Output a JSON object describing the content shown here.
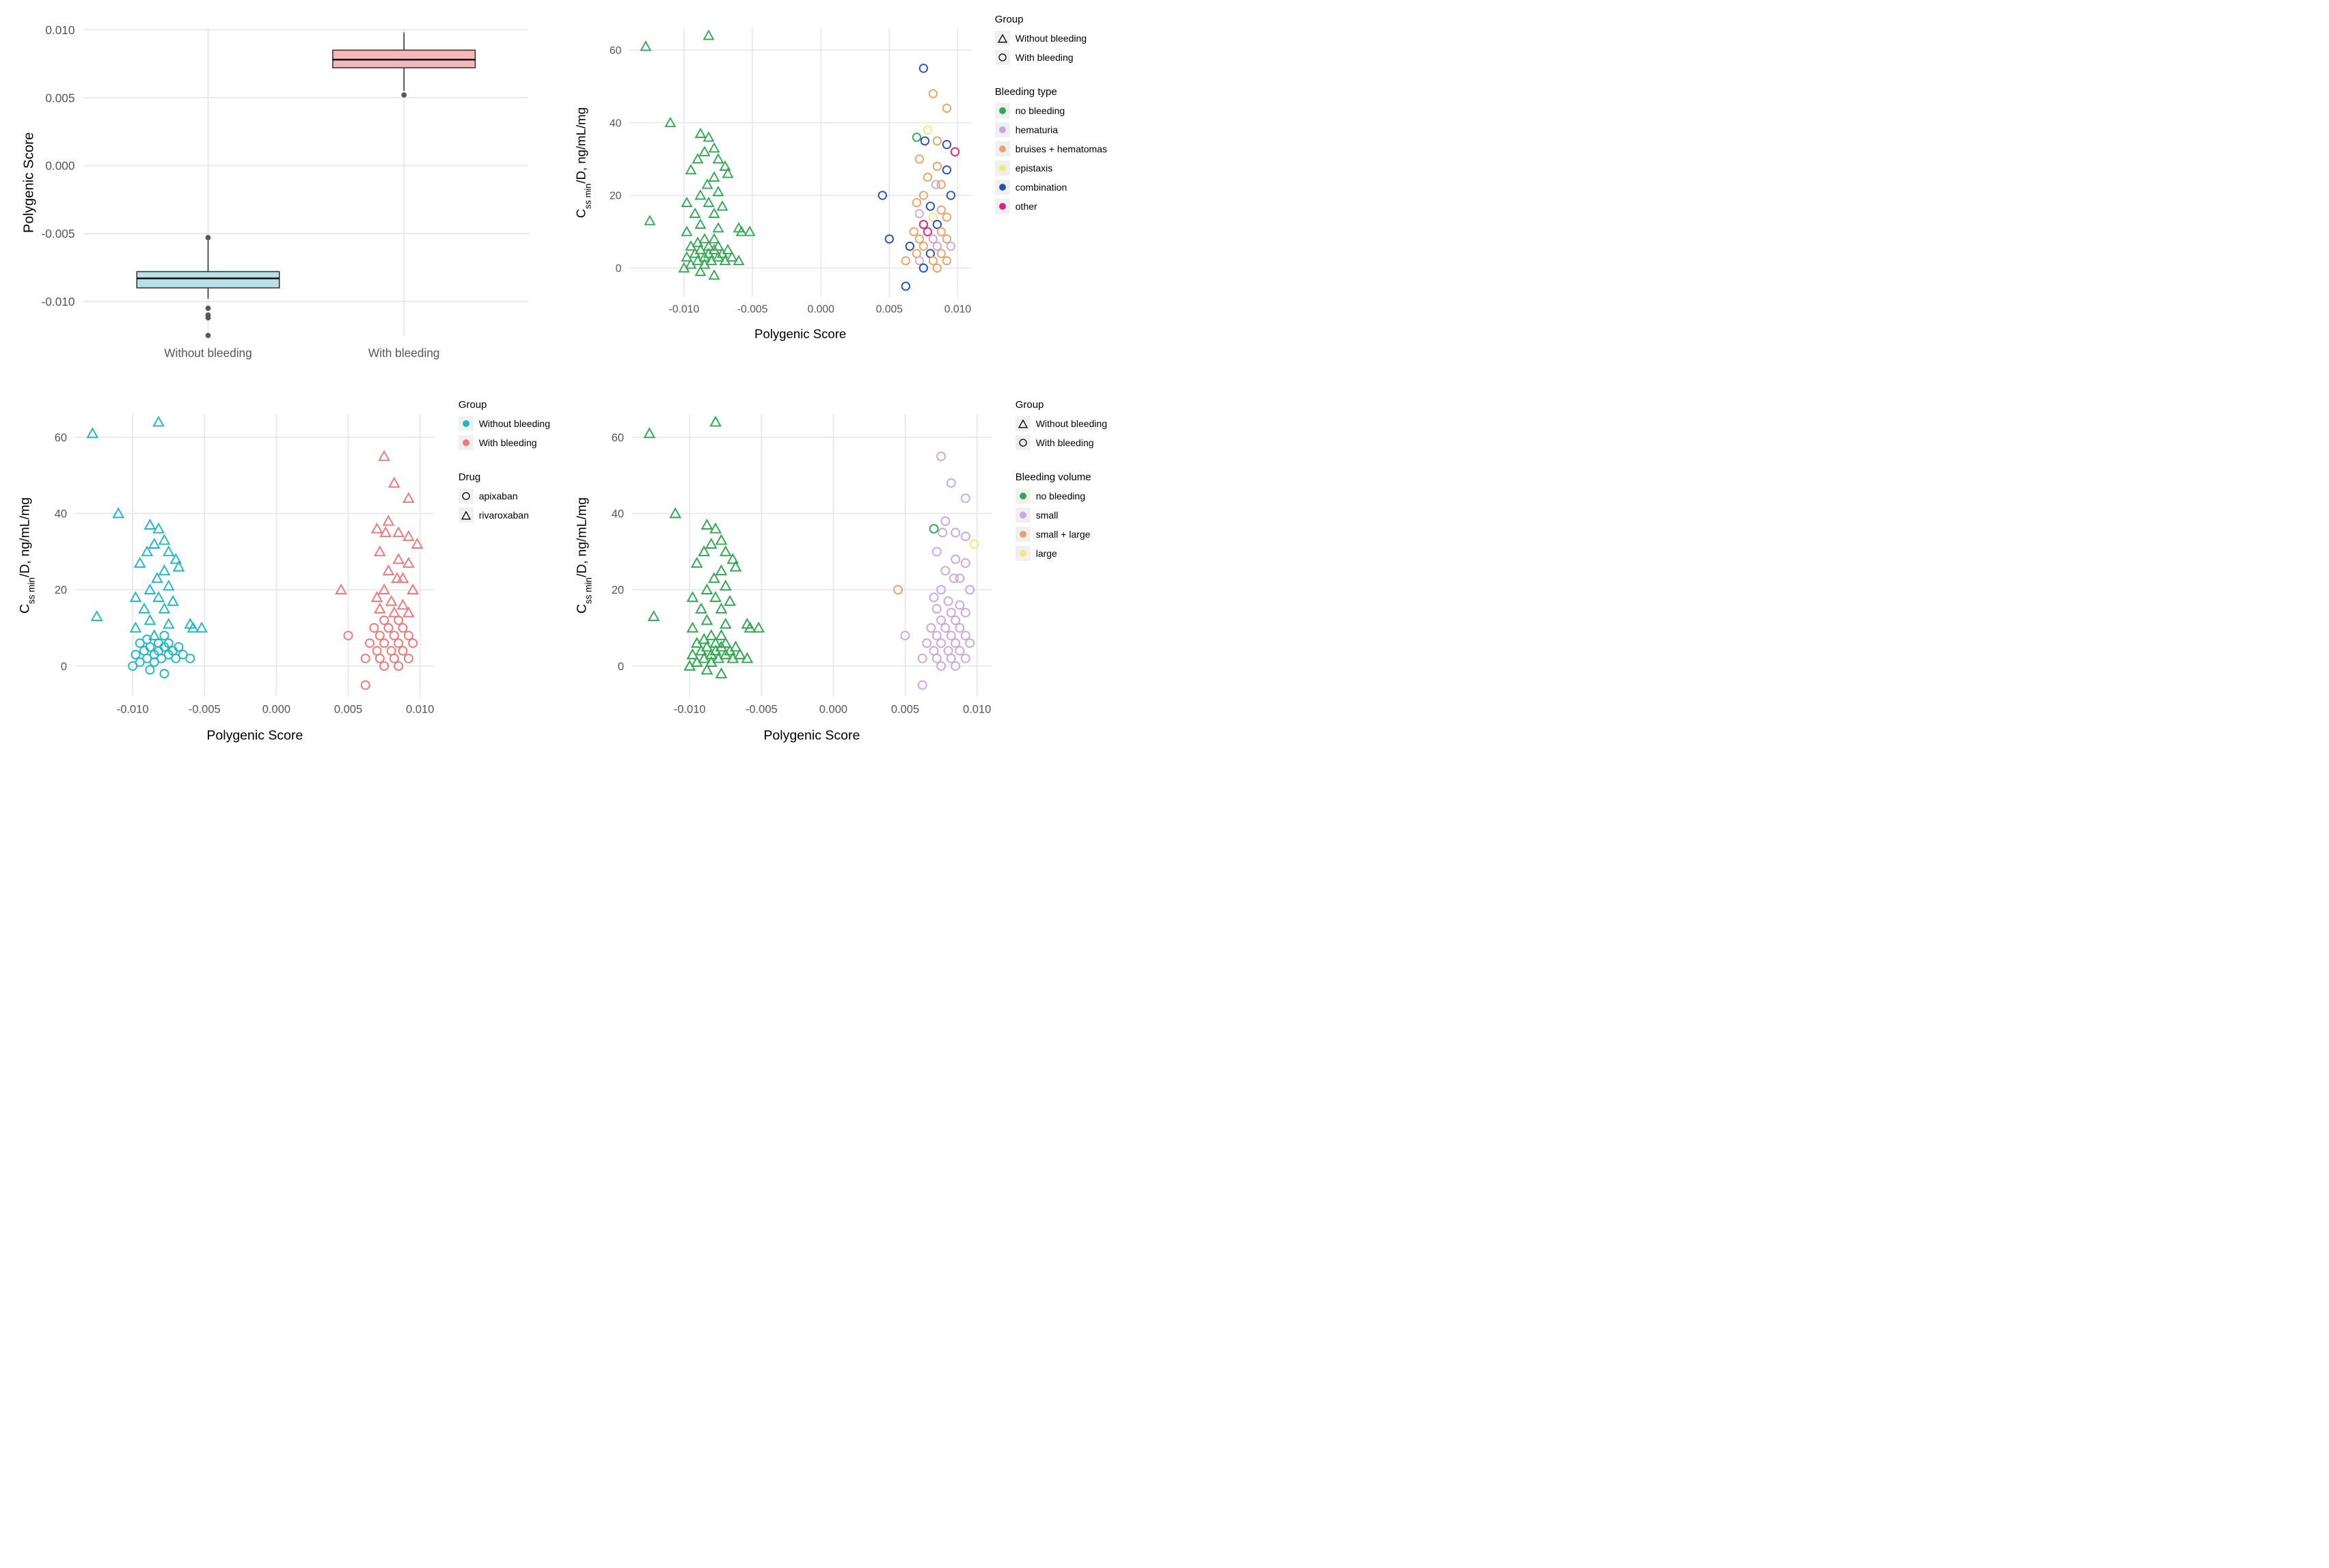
{
  "colors": {
    "background": "#ffffff",
    "panel_bg": "#ffffff",
    "grid": "#e5e5e5",
    "axis_text": "#555555",
    "label_text": "#000000",
    "outlier": "#595959",
    "box_without_fill": "#b8e0e8",
    "box_without_stroke": "#2b8a9e",
    "box_with_fill": "#f5b8b8",
    "box_with_stroke": "#d96666"
  },
  "fonts": {
    "tick": 11,
    "axis": 13,
    "legend_title": 15,
    "legend_item": 14
  },
  "panel_boxplot": {
    "type": "boxplot",
    "ylabel": "Polygenic Score",
    "ylim": [
      -0.0125,
      0.01
    ],
    "yticks": [
      -0.01,
      -0.005,
      0.0,
      0.005,
      0.01
    ],
    "ytick_labels": [
      "-0.010",
      "-0.005",
      "0.000",
      "0.005",
      "0.010"
    ],
    "categories": [
      "Without bleeding",
      "With bleeding"
    ],
    "boxes": [
      {
        "cat": 0,
        "q1": -0.009,
        "med": -0.0083,
        "q3": -0.0078,
        "lo": -0.0098,
        "hi": -0.0055,
        "fill": "#b8e0e8",
        "stroke": "#2b8a9e"
      },
      {
        "cat": 1,
        "q1": 0.0072,
        "med": 0.0078,
        "q3": 0.0085,
        "lo": 0.0055,
        "hi": 0.0098,
        "fill": "#f5b8b8",
        "stroke": "#d96666"
      }
    ],
    "outliers": [
      {
        "cat": 0,
        "y": -0.0053
      },
      {
        "cat": 0,
        "y": -0.0105
      },
      {
        "cat": 0,
        "y": -0.011
      },
      {
        "cat": 0,
        "y": -0.0112
      },
      {
        "cat": 0,
        "y": -0.0125
      },
      {
        "cat": 1,
        "y": 0.0052
      }
    ]
  },
  "scatter_common": {
    "xlabel": "Polygenic Score",
    "ylabel_html": "C<tspan baseline-shift='sub' font-size='9'>ss min</tspan>/D, ng/mL/mg",
    "xlim": [
      -0.014,
      0.011
    ],
    "xticks": [
      -0.01,
      -0.005,
      0.0,
      0.005,
      0.01
    ],
    "xtick_labels": [
      "-0.010",
      "-0.005",
      "0.000",
      "0.005",
      "0.010"
    ],
    "ylim": [
      -8,
      66
    ],
    "yticks": [
      0,
      20,
      40,
      60
    ],
    "ytick_labels": [
      "0",
      "20",
      "40",
      "60"
    ]
  },
  "bleed_colors": {
    "no_bleeding": "#2fa84f",
    "hematuria": "#c8a8e0",
    "bruises": "#f0a060",
    "epistaxis": "#f5e878",
    "combination": "#2050c0",
    "other": "#e02080"
  },
  "vol_colors": {
    "no_bleeding": "#2fa84f",
    "small": "#c8a8e0",
    "small_large": "#f0a060",
    "large": "#f5e878"
  },
  "drug_colors": {
    "without": "#20b8c8",
    "with": "#f07878"
  },
  "legends": {
    "group_shape": {
      "title": "Group",
      "items": [
        {
          "label": "Without bleeding",
          "shape": "triangle"
        },
        {
          "label": "With bleeding",
          "shape": "circle"
        }
      ]
    },
    "group_color": {
      "title": "Group",
      "items": [
        {
          "label": "Without bleeding",
          "color": "#20b8c8"
        },
        {
          "label": "With bleeding",
          "color": "#f07878"
        }
      ]
    },
    "drug": {
      "title": "Drug",
      "items": [
        {
          "label": "apixaban",
          "shape": "circle"
        },
        {
          "label": "rivaroxaban",
          "shape": "triangle"
        }
      ]
    },
    "bleeding_type": {
      "title": "Bleeding type",
      "items": [
        {
          "label": "no bleeding",
          "color": "#2fa84f"
        },
        {
          "label": "hematuria",
          "color": "#c8a8e0"
        },
        {
          "label": "bruises + hematomas",
          "color": "#f0a060"
        },
        {
          "label": "epistaxis",
          "color": "#f5e878"
        },
        {
          "label": "combination",
          "color": "#2050c0"
        },
        {
          "label": "other",
          "color": "#e02080"
        }
      ]
    },
    "bleeding_volume": {
      "title": "Bleeding volume",
      "items": [
        {
          "label": "no bleeding",
          "color": "#2fa84f"
        },
        {
          "label": "small",
          "color": "#c8a8e0"
        },
        {
          "label": "small + large",
          "color": "#f0a060"
        },
        {
          "label": "large",
          "color": "#f5e878"
        }
      ]
    }
  },
  "points_left": [
    {
      "x": -0.0128,
      "y": 61,
      "drug": "rivaroxaban"
    },
    {
      "x": -0.0082,
      "y": 64,
      "drug": "rivaroxaban"
    },
    {
      "x": -0.011,
      "y": 40,
      "drug": "rivaroxaban"
    },
    {
      "x": -0.0088,
      "y": 37,
      "drug": "rivaroxaban"
    },
    {
      "x": -0.0082,
      "y": 36,
      "drug": "rivaroxaban"
    },
    {
      "x": -0.0085,
      "y": 32,
      "drug": "rivaroxaban"
    },
    {
      "x": -0.0078,
      "y": 33,
      "drug": "rivaroxaban"
    },
    {
      "x": -0.009,
      "y": 30,
      "drug": "rivaroxaban"
    },
    {
      "x": -0.0075,
      "y": 30,
      "drug": "rivaroxaban"
    },
    {
      "x": -0.007,
      "y": 28,
      "drug": "rivaroxaban"
    },
    {
      "x": -0.0095,
      "y": 27,
      "drug": "rivaroxaban"
    },
    {
      "x": -0.0068,
      "y": 26,
      "drug": "rivaroxaban"
    },
    {
      "x": -0.0078,
      "y": 25,
      "drug": "rivaroxaban"
    },
    {
      "x": -0.0083,
      "y": 23,
      "drug": "rivaroxaban"
    },
    {
      "x": -0.0075,
      "y": 21,
      "drug": "rivaroxaban"
    },
    {
      "x": -0.0088,
      "y": 20,
      "drug": "rivaroxaban"
    },
    {
      "x": -0.0098,
      "y": 18,
      "drug": "rivaroxaban"
    },
    {
      "x": -0.0082,
      "y": 18,
      "drug": "rivaroxaban"
    },
    {
      "x": -0.0072,
      "y": 17,
      "drug": "rivaroxaban"
    },
    {
      "x": -0.0092,
      "y": 15,
      "drug": "rivaroxaban"
    },
    {
      "x": -0.0078,
      "y": 15,
      "drug": "rivaroxaban"
    },
    {
      "x": -0.0125,
      "y": 13,
      "drug": "rivaroxaban"
    },
    {
      "x": -0.0088,
      "y": 12,
      "drug": "rivaroxaban"
    },
    {
      "x": -0.0075,
      "y": 11,
      "drug": "rivaroxaban"
    },
    {
      "x": -0.006,
      "y": 11,
      "drug": "rivaroxaban"
    },
    {
      "x": -0.0098,
      "y": 10,
      "drug": "rivaroxaban"
    },
    {
      "x": -0.0058,
      "y": 10,
      "drug": "rivaroxaban"
    },
    {
      "x": -0.0052,
      "y": 10,
      "drug": "rivaroxaban"
    },
    {
      "x": -0.0085,
      "y": 8,
      "drug": "rivaroxaban"
    },
    {
      "x": -0.0078,
      "y": 8,
      "drug": "apixaban"
    },
    {
      "x": -0.009,
      "y": 7,
      "drug": "apixaban"
    },
    {
      "x": -0.0082,
      "y": 6,
      "drug": "apixaban"
    },
    {
      "x": -0.0095,
      "y": 6,
      "drug": "apixaban"
    },
    {
      "x": -0.0075,
      "y": 6,
      "drug": "apixaban"
    },
    {
      "x": -0.0088,
      "y": 5,
      "drug": "apixaban"
    },
    {
      "x": -0.0078,
      "y": 5,
      "drug": "apixaban"
    },
    {
      "x": -0.0068,
      "y": 5,
      "drug": "apixaban"
    },
    {
      "x": -0.0092,
      "y": 4,
      "drug": "apixaban"
    },
    {
      "x": -0.0082,
      "y": 4,
      "drug": "apixaban"
    },
    {
      "x": -0.0072,
      "y": 4,
      "drug": "apixaban"
    },
    {
      "x": -0.0098,
      "y": 3,
      "drug": "apixaban"
    },
    {
      "x": -0.0085,
      "y": 3,
      "drug": "apixaban"
    },
    {
      "x": -0.0075,
      "y": 3,
      "drug": "apixaban"
    },
    {
      "x": -0.0065,
      "y": 3,
      "drug": "apixaban"
    },
    {
      "x": -0.009,
      "y": 2,
      "drug": "apixaban"
    },
    {
      "x": -0.008,
      "y": 2,
      "drug": "apixaban"
    },
    {
      "x": -0.007,
      "y": 2,
      "drug": "apixaban"
    },
    {
      "x": -0.006,
      "y": 2,
      "drug": "apixaban"
    },
    {
      "x": -0.0095,
      "y": 1,
      "drug": "apixaban"
    },
    {
      "x": -0.0085,
      "y": 1,
      "drug": "apixaban"
    },
    {
      "x": -0.01,
      "y": 0,
      "drug": "apixaban"
    },
    {
      "x": -0.0088,
      "y": -1,
      "drug": "apixaban"
    },
    {
      "x": -0.0078,
      "y": -2,
      "drug": "apixaban"
    }
  ],
  "points_right": [
    {
      "x": 0.0075,
      "y": 55,
      "bt": "combination",
      "vol": "small",
      "drug": "rivaroxaban"
    },
    {
      "x": 0.0082,
      "y": 48,
      "bt": "bruises",
      "vol": "small",
      "drug": "rivaroxaban"
    },
    {
      "x": 0.0092,
      "y": 44,
      "bt": "bruises",
      "vol": "small",
      "drug": "rivaroxaban"
    },
    {
      "x": 0.0078,
      "y": 38,
      "bt": "epistaxis",
      "vol": "small",
      "drug": "rivaroxaban"
    },
    {
      "x": 0.007,
      "y": 36,
      "bt": "no_bleeding",
      "vol": "no_bleeding",
      "drug": "rivaroxaban"
    },
    {
      "x": 0.0076,
      "y": 35,
      "bt": "combination",
      "vol": "small",
      "drug": "rivaroxaban"
    },
    {
      "x": 0.0085,
      "y": 35,
      "bt": "bruises",
      "vol": "small",
      "drug": "rivaroxaban"
    },
    {
      "x": 0.0092,
      "y": 34,
      "bt": "combination",
      "vol": "small",
      "drug": "rivaroxaban"
    },
    {
      "x": 0.0098,
      "y": 32,
      "bt": "other",
      "vol": "large",
      "drug": "rivaroxaban"
    },
    {
      "x": 0.0072,
      "y": 30,
      "bt": "bruises",
      "vol": "small",
      "drug": "rivaroxaban"
    },
    {
      "x": 0.0085,
      "y": 28,
      "bt": "bruises",
      "vol": "small",
      "drug": "rivaroxaban"
    },
    {
      "x": 0.0092,
      "y": 27,
      "bt": "combination",
      "vol": "small",
      "drug": "rivaroxaban"
    },
    {
      "x": 0.0078,
      "y": 25,
      "bt": "bruises",
      "vol": "small",
      "drug": "rivaroxaban"
    },
    {
      "x": 0.0084,
      "y": 23,
      "bt": "hematuria",
      "vol": "small",
      "drug": "rivaroxaban"
    },
    {
      "x": 0.0088,
      "y": 23,
      "bt": "bruises",
      "vol": "small",
      "drug": "rivaroxaban"
    },
    {
      "x": 0.0045,
      "y": 20,
      "bt": "combination",
      "vol": "small_large",
      "drug": "rivaroxaban"
    },
    {
      "x": 0.0075,
      "y": 20,
      "bt": "bruises",
      "vol": "small",
      "drug": "rivaroxaban"
    },
    {
      "x": 0.0095,
      "y": 20,
      "bt": "combination",
      "vol": "small",
      "drug": "rivaroxaban"
    },
    {
      "x": 0.007,
      "y": 18,
      "bt": "bruises",
      "vol": "small",
      "drug": "rivaroxaban"
    },
    {
      "x": 0.008,
      "y": 17,
      "bt": "combination",
      "vol": "small",
      "drug": "rivaroxaban"
    },
    {
      "x": 0.0088,
      "y": 16,
      "bt": "bruises",
      "vol": "small",
      "drug": "rivaroxaban"
    },
    {
      "x": 0.0072,
      "y": 15,
      "bt": "hematuria",
      "vol": "small",
      "drug": "rivaroxaban"
    },
    {
      "x": 0.0082,
      "y": 14,
      "bt": "epistaxis",
      "vol": "small",
      "drug": "rivaroxaban"
    },
    {
      "x": 0.0092,
      "y": 14,
      "bt": "bruises",
      "vol": "small",
      "drug": "rivaroxaban"
    },
    {
      "x": 0.0075,
      "y": 12,
      "bt": "other",
      "vol": "small",
      "drug": "apixaban"
    },
    {
      "x": 0.0085,
      "y": 12,
      "bt": "combination",
      "vol": "small",
      "drug": "apixaban"
    },
    {
      "x": 0.0068,
      "y": 10,
      "bt": "bruises",
      "vol": "small",
      "drug": "apixaban"
    },
    {
      "x": 0.0078,
      "y": 10,
      "bt": "other",
      "vol": "small",
      "drug": "apixaban"
    },
    {
      "x": 0.0088,
      "y": 10,
      "bt": "bruises",
      "vol": "small",
      "drug": "apixaban"
    },
    {
      "x": 0.005,
      "y": 8,
      "bt": "combination",
      "vol": "small",
      "drug": "apixaban"
    },
    {
      "x": 0.0072,
      "y": 8,
      "bt": "bruises",
      "vol": "small",
      "drug": "apixaban"
    },
    {
      "x": 0.0082,
      "y": 8,
      "bt": "hematuria",
      "vol": "small",
      "drug": "apixaban"
    },
    {
      "x": 0.0092,
      "y": 8,
      "bt": "bruises",
      "vol": "small",
      "drug": "apixaban"
    },
    {
      "x": 0.0065,
      "y": 6,
      "bt": "combination",
      "vol": "small",
      "drug": "apixaban"
    },
    {
      "x": 0.0075,
      "y": 6,
      "bt": "bruises",
      "vol": "small",
      "drug": "apixaban"
    },
    {
      "x": 0.0085,
      "y": 6,
      "bt": "hematuria",
      "vol": "small",
      "drug": "apixaban"
    },
    {
      "x": 0.0095,
      "y": 6,
      "bt": "hematuria",
      "vol": "small",
      "drug": "apixaban"
    },
    {
      "x": 0.007,
      "y": 4,
      "bt": "bruises",
      "vol": "small",
      "drug": "apixaban"
    },
    {
      "x": 0.008,
      "y": 4,
      "bt": "combination",
      "vol": "small",
      "drug": "apixaban"
    },
    {
      "x": 0.0088,
      "y": 4,
      "bt": "bruises",
      "vol": "small",
      "drug": "apixaban"
    },
    {
      "x": 0.0062,
      "y": 2,
      "bt": "bruises",
      "vol": "small",
      "drug": "apixaban"
    },
    {
      "x": 0.0072,
      "y": 2,
      "bt": "hematuria",
      "vol": "small",
      "drug": "apixaban"
    },
    {
      "x": 0.0082,
      "y": 2,
      "bt": "bruises",
      "vol": "small",
      "drug": "apixaban"
    },
    {
      "x": 0.0092,
      "y": 2,
      "bt": "bruises",
      "vol": "small",
      "drug": "apixaban"
    },
    {
      "x": 0.0075,
      "y": 0,
      "bt": "combination",
      "vol": "small",
      "drug": "apixaban"
    },
    {
      "x": 0.0085,
      "y": 0,
      "bt": "bruises",
      "vol": "small",
      "drug": "apixaban"
    },
    {
      "x": 0.0062,
      "y": -5,
      "bt": "combination",
      "vol": "small",
      "drug": "apixaban"
    }
  ]
}
